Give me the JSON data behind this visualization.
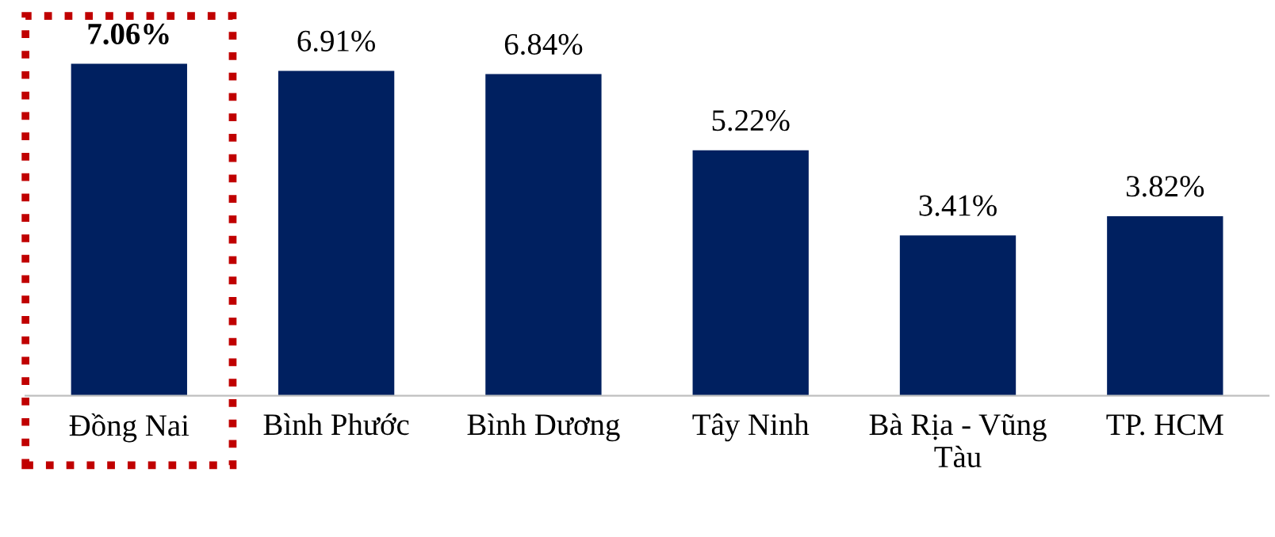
{
  "chart_data": {
    "type": "bar",
    "categories": [
      "Đồng Nai",
      "Bình Phước",
      "Bình Dương",
      "Tây Ninh",
      "Bà Rịa - Vũng\nTàu",
      "TP. HCM"
    ],
    "values": [
      7.06,
      6.91,
      6.84,
      5.22,
      3.41,
      3.82
    ],
    "value_labels": [
      "7.06%",
      "6.91%",
      "6.84%",
      "5.22%",
      "3.41%",
      "3.82%"
    ],
    "color": "#002060",
    "grid": false,
    "legend": false
  }
}
